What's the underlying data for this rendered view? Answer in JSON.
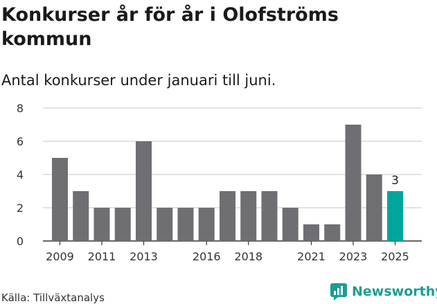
{
  "title": "Konkurser år för år i Olofströms kommun",
  "subtitle": "Antal konkurser under januari till juni.",
  "source": "Källa: Tillväxtanalys",
  "logo_text": "Newsworthy",
  "colors": {
    "bar": "#6e6e73",
    "highlight": "#00a69c",
    "grid": "#d9d9d9",
    "axis": "#333333",
    "brand": "#1b9e93"
  },
  "chart_data": {
    "type": "bar",
    "title": "Konkurser år för år i Olofströms kommun",
    "subtitle": "Antal konkurser under januari till juni.",
    "categories": [
      "2009",
      "2010",
      "2011",
      "2012",
      "2013",
      "2014",
      "2015",
      "2016",
      "2017",
      "2018",
      "2019",
      "2020",
      "2021",
      "2022",
      "2023",
      "2024",
      "2025"
    ],
    "values": [
      5,
      3,
      2,
      2,
      6,
      2,
      2,
      2,
      3,
      3,
      3,
      2,
      1,
      1,
      7,
      4,
      3
    ],
    "x_tick_labels": [
      "2009",
      "2011",
      "2013",
      "2016",
      "2018",
      "2021",
      "2023",
      "2025"
    ],
    "y_ticks": [
      0,
      2,
      4,
      6,
      8
    ],
    "ylim": [
      0,
      8
    ],
    "grid": true,
    "highlight_category": "2025",
    "data_labels": [
      {
        "category": "2025",
        "text": "3"
      }
    ],
    "xlabel": "",
    "ylabel": ""
  }
}
